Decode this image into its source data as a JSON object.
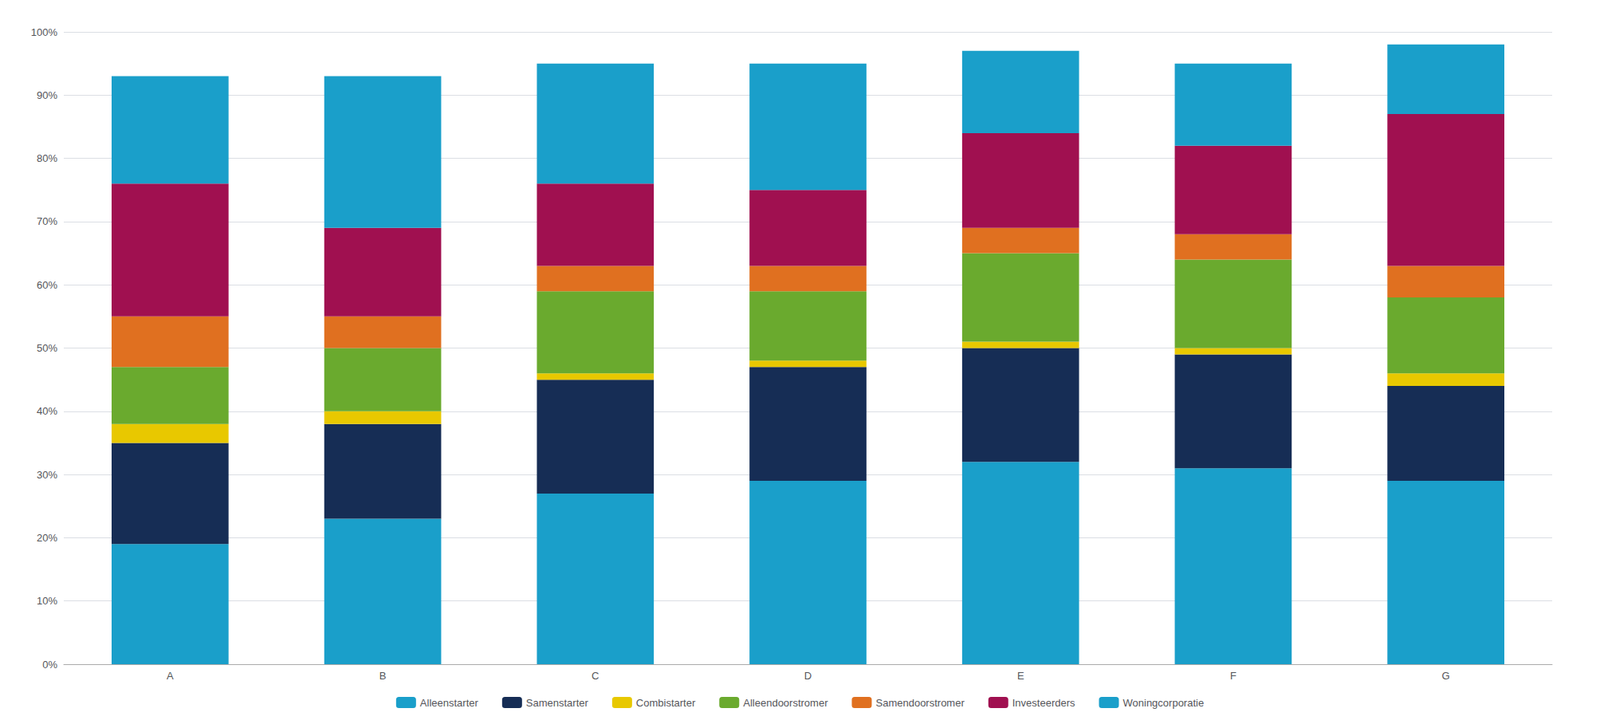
{
  "chart_data": {
    "type": "bar",
    "stacked": true,
    "categories": [
      "A",
      "B",
      "C",
      "D",
      "E",
      "F",
      "G"
    ],
    "series": [
      {
        "name": "Alleenstarter",
        "color": "#1a9fca",
        "values": [
          19,
          23,
          27,
          29,
          32,
          31,
          29
        ]
      },
      {
        "name": "Samenstarter",
        "color": "#162d55",
        "values": [
          16,
          15,
          18,
          18,
          18,
          18,
          15
        ]
      },
      {
        "name": "Combistarter",
        "color": "#e8c800",
        "values": [
          3,
          2,
          1,
          1,
          1,
          1,
          2
        ]
      },
      {
        "name": "Alleendoorstromer",
        "color": "#6aaa2e",
        "values": [
          9,
          10,
          13,
          11,
          14,
          14,
          12
        ]
      },
      {
        "name": "Samendoorstromer",
        "color": "#e07020",
        "values": [
          8,
          5,
          4,
          4,
          4,
          4,
          5
        ]
      },
      {
        "name": "Investeerders",
        "color": "#a01050",
        "values": [
          21,
          14,
          13,
          12,
          15,
          14,
          24
        ]
      },
      {
        "name": "Woningcorporatie",
        "color": "#1a9fca",
        "values": [
          17,
          24,
          19,
          20,
          13,
          13,
          11
        ]
      }
    ],
    "ylim": [
      0,
      100
    ],
    "yticks": [
      {
        "value": 0,
        "label": "0%"
      },
      {
        "value": 10,
        "label": "10%"
      },
      {
        "value": 20,
        "label": "20%"
      },
      {
        "value": 30,
        "label": "30%"
      },
      {
        "value": 40,
        "label": "40%"
      },
      {
        "value": 50,
        "label": "50%"
      },
      {
        "value": 60,
        "label": "60%"
      },
      {
        "value": 70,
        "label": "70%"
      },
      {
        "value": 80,
        "label": "80%"
      },
      {
        "value": 90,
        "label": "90%"
      },
      {
        "value": 100,
        "label": "100%"
      }
    ],
    "grid": true,
    "legend": "bottom"
  }
}
